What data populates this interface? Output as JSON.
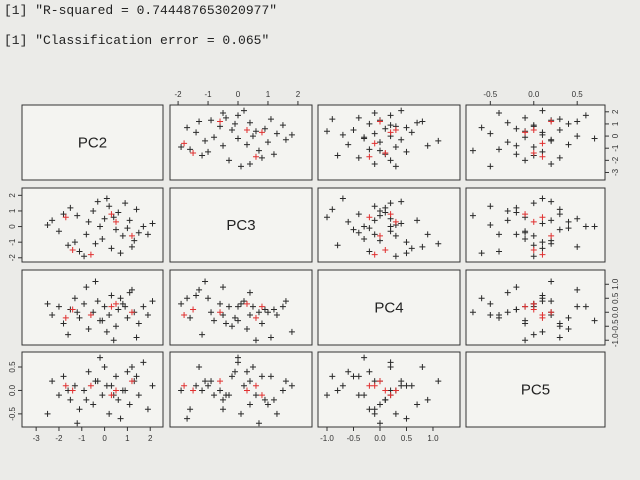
{
  "console": [
    "[1] \"R-squared = 0.744487653020977\"",
    "[1] \"Classification error = 0.065\""
  ],
  "chart_data": {
    "type": "scatter-matrix",
    "variables": [
      "PC2",
      "PC3",
      "PC4",
      "PC5"
    ],
    "lims": [
      [
        -3.62,
        2.56
      ],
      [
        -2.27,
        2.47
      ],
      [
        -1.17,
        1.51
      ],
      [
        -0.78,
        0.82
      ]
    ],
    "ticks": [
      [
        -3,
        -2,
        -1,
        0,
        1,
        2
      ],
      [
        -2,
        -1,
        0,
        1,
        2
      ],
      [
        {
          "value": -1,
          "label": "-1.0"
        },
        {
          "value": -0.5,
          "label": "-0.5"
        },
        {
          "value": 0,
          "label": "0.0"
        },
        {
          "value": 0.5,
          "label": "0.5"
        },
        {
          "value": 1,
          "label": "1.0"
        }
      ],
      [
        {
          "value": -0.5,
          "label": "-0.5"
        },
        {
          "value": 0,
          "label": "0.0"
        },
        {
          "value": 0.5,
          "label": "0.5"
        }
      ]
    ],
    "series": [
      {
        "color": "#2a2a2a",
        "values": [
          [
            -2.3,
            0.4,
            -0.1,
            0.2
          ],
          [
            -2.0,
            -0.3,
            0.2,
            -0.1
          ],
          [
            -1.8,
            0.8,
            -0.4,
            0.3
          ],
          [
            -1.5,
            1.2,
            0.1,
            -0.2
          ],
          [
            -1.3,
            -1.0,
            0.5,
            0.1
          ],
          [
            -1.1,
            -1.6,
            -0.2,
            -0.4
          ],
          [
            -0.9,
            -1.9,
            0.3,
            0.0
          ],
          [
            -0.7,
            0.3,
            -0.6,
            0.4
          ],
          [
            -0.5,
            1.0,
            0.0,
            -0.3
          ],
          [
            -0.3,
            1.6,
            0.4,
            0.2
          ],
          [
            -0.1,
            -0.8,
            -0.3,
            -0.1
          ],
          [
            0.0,
            0.5,
            0.2,
            0.5
          ],
          [
            0.2,
            1.3,
            -0.1,
            -0.5
          ],
          [
            0.3,
            -1.4,
            0.6,
            0.1
          ],
          [
            0.5,
            -0.2,
            -0.5,
            0.3
          ],
          [
            0.6,
            0.9,
            0.1,
            -0.2
          ],
          [
            0.8,
            -0.6,
            0.3,
            0.0
          ],
          [
            1.0,
            -0.1,
            -0.2,
            0.4
          ],
          [
            1.1,
            0.4,
            0.7,
            -0.3
          ],
          [
            1.3,
            -0.9,
            0.0,
            0.2
          ],
          [
            1.5,
            -0.4,
            -0.4,
            -0.1
          ],
          [
            1.7,
            0.0,
            0.2,
            0.6
          ],
          [
            1.9,
            -0.5,
            -0.1,
            -0.4
          ],
          [
            2.1,
            0.2,
            0.4,
            0.1
          ],
          [
            -1.6,
            -1.2,
            -0.8,
            0.0
          ],
          [
            -0.8,
            -0.5,
            0.9,
            -0.2
          ],
          [
            0.1,
            1.8,
            -0.7,
            0.1
          ],
          [
            0.7,
            -1.7,
            0.5,
            -0.6
          ],
          [
            1.4,
            1.1,
            -0.9,
            0.3
          ],
          [
            -2.5,
            0.1,
            0.3,
            -0.5
          ],
          [
            -0.4,
            -1.1,
            1.1,
            0.2
          ],
          [
            0.4,
            0.6,
            -1.0,
            -0.1
          ],
          [
            1.2,
            -1.3,
            0.8,
            0.5
          ],
          [
            -1.2,
            0.7,
            0.0,
            -0.7
          ],
          [
            0.9,
            1.5,
            0.2,
            0.0
          ],
          [
            -0.2,
            0.0,
            -0.3,
            0.7
          ]
        ]
      },
      {
        "color": "#e03030",
        "values": [
          [
            -1.4,
            -1.5,
            0.1,
            0.0
          ],
          [
            -0.6,
            -1.8,
            -0.1,
            0.1
          ],
          [
            0.3,
            0.8,
            0.2,
            -0.1
          ],
          [
            1.2,
            -0.6,
            0.0,
            0.2
          ],
          [
            0.5,
            0.3,
            0.3,
            0.0
          ],
          [
            -1.7,
            0.6,
            -0.2,
            0.1
          ]
        ]
      }
    ]
  }
}
